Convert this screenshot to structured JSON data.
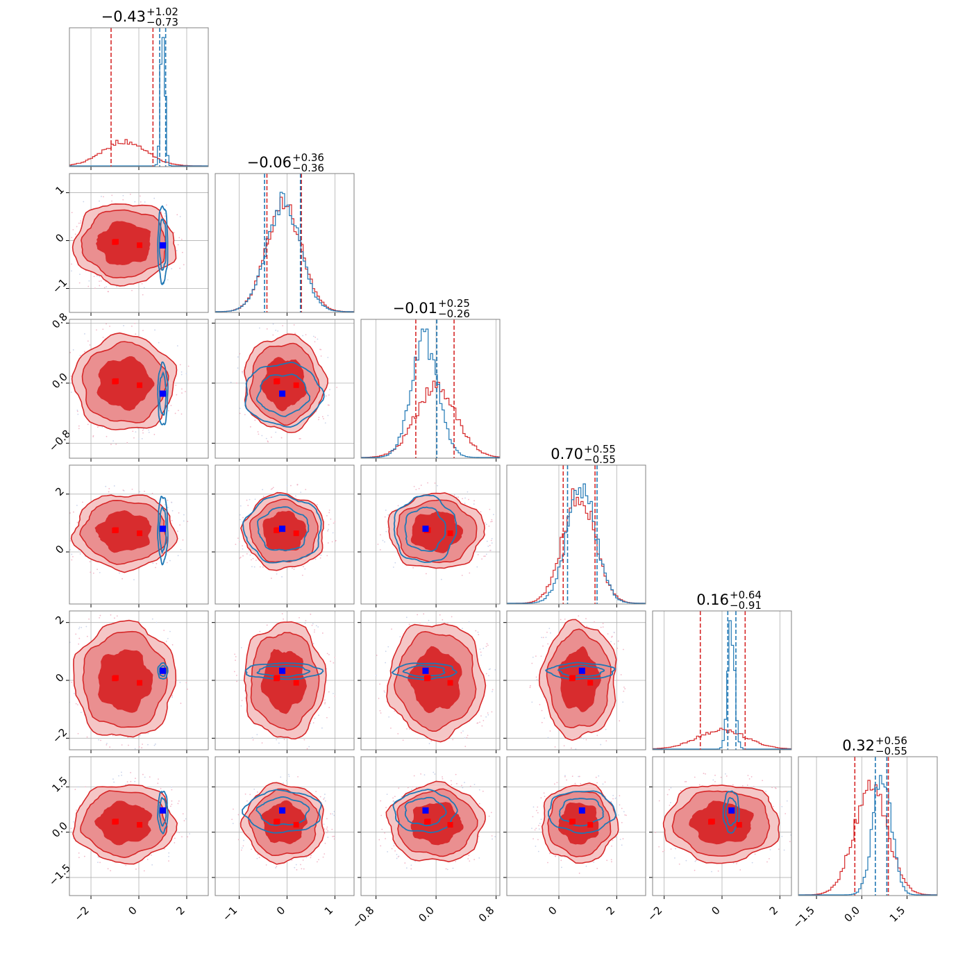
{
  "chart_data": {
    "type": "corner",
    "grid": true,
    "colors": {
      "red": "#d62728",
      "blue": "#1f77b4",
      "red_fill_outer": "#f5c6c6",
      "red_fill_mid": "#ea8f90",
      "red_fill_inner": "#d82c2e",
      "truth_blue": "#0000ff",
      "truth_red": "#ff0000"
    },
    "parameters": [
      {
        "title": "−0.43",
        "plus": "+1.02",
        "minus": "−0.73",
        "range": [
          -2.9,
          2.9
        ],
        "ticks": [
          -2,
          0,
          2
        ],
        "tick_labels": [
          "−2",
          "0",
          "2"
        ],
        "red": {
          "mean": -0.6,
          "sd": 0.9,
          "q": [
            -1.16,
            0.59
          ]
        },
        "blue": {
          "mean": 1.0,
          "sd": 0.09,
          "q": [
            0.87,
            1.12
          ]
        },
        "truth": 1.0
      },
      {
        "title": "−0.06",
        "plus": "+0.36",
        "minus": "−0.36",
        "range": [
          -1.5,
          1.4
        ],
        "ticks": [
          -1,
          0,
          1
        ],
        "tick_labels": [
          "−1",
          "0",
          "1"
        ],
        "red": {
          "mean": -0.06,
          "sd": 0.36,
          "q": [
            -0.42,
            0.3
          ]
        },
        "blue": {
          "mean": -0.08,
          "sd": 0.35,
          "q": [
            -0.47,
            0.28
          ]
        },
        "truth": -0.1
      },
      {
        "title": "−0.01",
        "plus": "+0.25",
        "minus": "−0.26",
        "range": [
          -1.0,
          0.85
        ],
        "ticks": [
          -0.8,
          0.0,
          0.8
        ],
        "tick_labels": [
          "−0.8",
          "0.0",
          "0.8"
        ],
        "red": {
          "mean": 0.0,
          "sd": 0.27,
          "q": [
            -0.27,
            0.24
          ]
        },
        "blue": {
          "mean": -0.15,
          "sd": 0.18,
          "q": [
            0.01,
            0.01
          ]
        },
        "truth": -0.14
      },
      {
        "title": "0.70",
        "plus": "+0.55",
        "minus": "−0.55",
        "range": [
          -1.8,
          3.0
        ],
        "ticks": [
          0,
          2
        ],
        "tick_labels": [
          "0",
          "2"
        ],
        "red": {
          "mean": 0.7,
          "sd": 0.55,
          "q": [
            0.15,
            1.25
          ]
        },
        "blue": {
          "mean": 0.78,
          "sd": 0.5,
          "q": [
            0.3,
            1.32
          ]
        },
        "truth": 0.8
      },
      {
        "title": "0.16",
        "plus": "+0.64",
        "minus": "−0.91",
        "range": [
          -2.4,
          2.4
        ],
        "ticks": [
          -2,
          0,
          2
        ],
        "tick_labels": [
          "−2",
          "0",
          "2"
        ],
        "red": {
          "mean": 0.0,
          "sd": 0.85,
          "q": [
            -0.75,
            0.8
          ]
        },
        "blue": {
          "mean": 0.32,
          "sd": 0.12,
          "q": [
            0.2,
            0.48
          ]
        },
        "truth": 0.33
      },
      {
        "title": "0.32",
        "plus": "+0.56",
        "minus": "−0.55",
        "range": [
          -2.1,
          2.5
        ],
        "ticks": [
          -1.5,
          0.0,
          1.5
        ],
        "tick_labels": [
          "−1.5",
          "0.0",
          "1.5"
        ],
        "red": {
          "mean": 0.3,
          "sd": 0.55,
          "q": [
            -0.23,
            0.88
          ]
        },
        "blue": {
          "mean": 0.68,
          "sd": 0.3,
          "q": [
            0.45,
            0.83
          ]
        },
        "truth": 0.72
      }
    ]
  }
}
